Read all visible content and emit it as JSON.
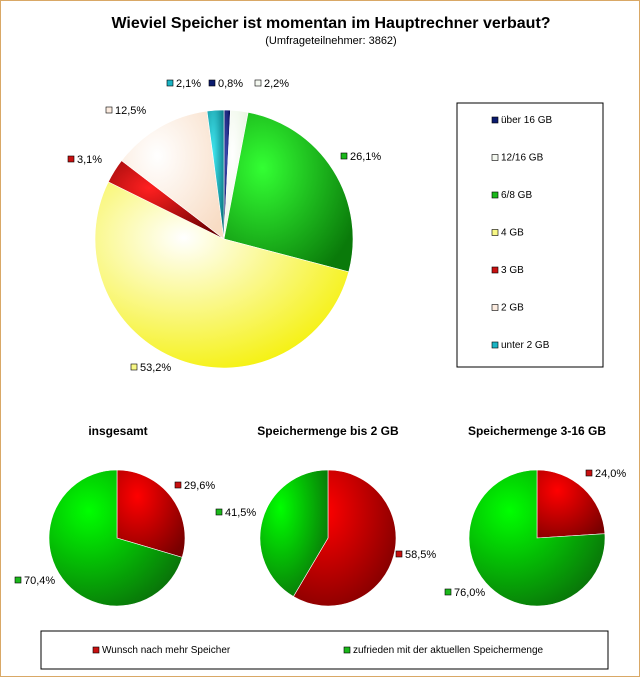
{
  "title": "Wieviel Speicher ist momentan im Hauptrechner verbaut?",
  "subtitle": "(Umfrageteilnehmer: 3862)",
  "chart_data": [
    {
      "type": "pie",
      "categories": [
        "über 16 GB",
        "12/16 GB",
        "6/8 GB",
        "4 GB",
        "3 GB",
        "2 GB",
        "unter 2 GB"
      ],
      "values": [
        0.8,
        2.2,
        26.1,
        53.2,
        3.1,
        12.5,
        2.1
      ],
      "labels": [
        "0,8%",
        "2,2%",
        "26,1%",
        "53,2%",
        "3,1%",
        "12,5%",
        "2,1%"
      ],
      "colors": [
        "#0a1a6e",
        "#f4f8f0",
        "#1bb81b",
        "#f8f886",
        "#c81010",
        "#fcece0",
        "#1ab4c4"
      ],
      "legend": "right"
    },
    {
      "type": "pie",
      "title": "insgesamt",
      "categories": [
        "Wunsch nach mehr Speicher",
        "zufrieden mit der aktuellen Speichermenge"
      ],
      "values": [
        29.6,
        70.4
      ],
      "labels": [
        "29,6%",
        "70,4%"
      ]
    },
    {
      "type": "pie",
      "title": "Speichermenge bis 2 GB",
      "categories": [
        "Wunsch nach mehr Speicher",
        "zufrieden mit der aktuellen Speichermenge"
      ],
      "values": [
        58.5,
        41.5
      ],
      "labels": [
        "58,5%",
        "41,5%"
      ]
    },
    {
      "type": "pie",
      "title": "Speichermenge 3-16 GB",
      "categories": [
        "Wunsch nach mehr Speicher",
        "zufrieden mit der aktuellen Speichermenge"
      ],
      "values": [
        24.0,
        76.0
      ],
      "labels": [
        "24,0%",
        "76,0%"
      ]
    }
  ],
  "bottom_legend": {
    "items": [
      "Wunsch nach mehr Speicher",
      "zufrieden mit der aktuellen Speichermenge"
    ],
    "colors": [
      "#c81010",
      "#1bb81b"
    ]
  }
}
